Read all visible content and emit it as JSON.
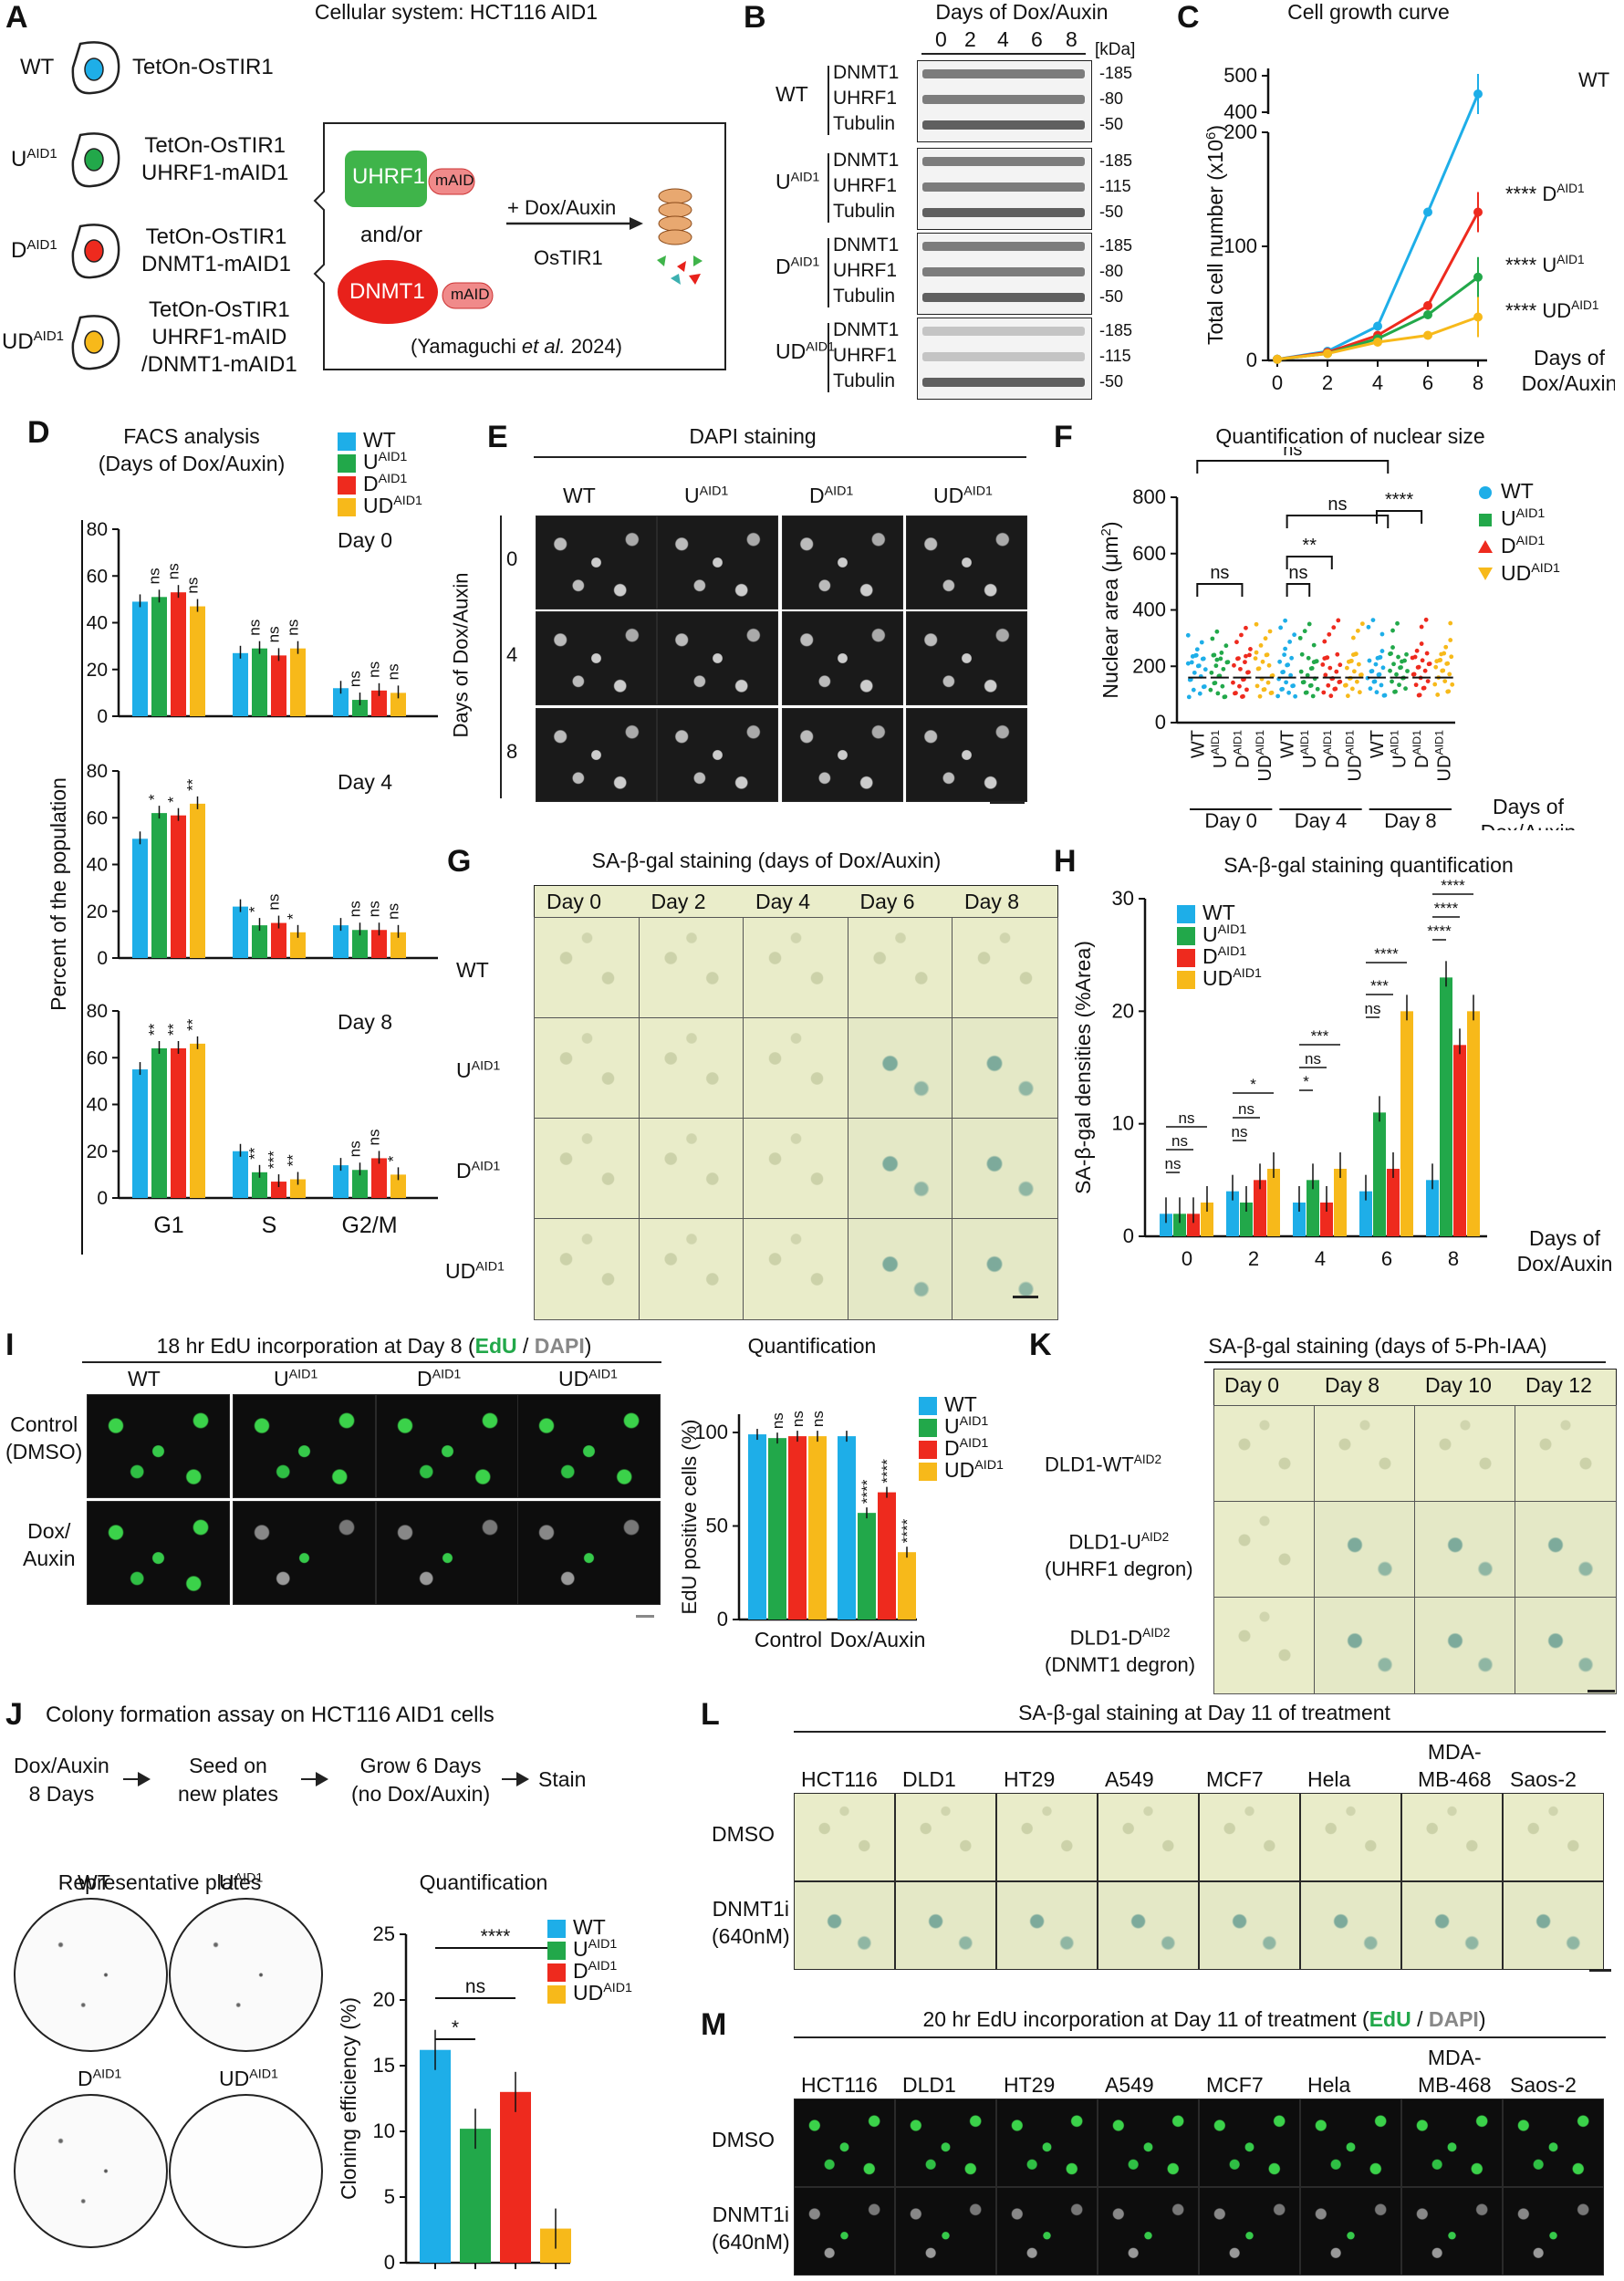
{
  "panel_labels": [
    "A",
    "B",
    "C",
    "D",
    "E",
    "F",
    "G",
    "H",
    "I",
    "J",
    "K",
    "L",
    "M"
  ],
  "panelA": {
    "title": "Cellular system: HCT116 AID1",
    "rows": [
      {
        "name": "WT",
        "sup": "",
        "lines": [
          "TetOn-OsTIR1"
        ]
      },
      {
        "name": "U",
        "sup": "AID1",
        "lines": [
          "TetOn-OsTIR1",
          "UHRF1-mAID1"
        ]
      },
      {
        "name": "D",
        "sup": "AID1",
        "lines": [
          "TetOn-OsTIR1",
          "DNMT1-mAID1"
        ]
      },
      {
        "name": "UD",
        "sup": "AID1",
        "lines": [
          "TetOn-OsTIR1",
          "UHRF1-mAID",
          "/DNMT1-mAID1"
        ]
      }
    ],
    "uhrf1": "UHRF1",
    "dnmt1": "DNMT1",
    "maid": "mAID",
    "andor": "and/or",
    "treatment": "+ Dox/Auxin",
    "ostir": "OsTIR1",
    "citation_pre": "(Yamaguchi ",
    "citation_em": "et al.",
    "citation_post": " 2024)"
  },
  "panelB": {
    "title": "Days of Dox/Auxin",
    "days": [
      "0",
      "2",
      "4",
      "6",
      "8"
    ],
    "kda": "[kDa]",
    "groups": [
      {
        "name": "WT",
        "sup": "",
        "proteins": [
          "DNMT1",
          "UHRF1",
          "Tubulin"
        ],
        "markers": [
          "185",
          "80",
          "50"
        ]
      },
      {
        "name": "U",
        "sup": "AID1",
        "proteins": [
          "DNMT1",
          "UHRF1",
          "Tubulin"
        ],
        "markers": [
          "185",
          "115",
          "50"
        ]
      },
      {
        "name": "D",
        "sup": "AID1",
        "proteins": [
          "DNMT1",
          "UHRF1",
          "Tubulin"
        ],
        "markers": [
          "185",
          "80",
          "50"
        ]
      },
      {
        "name": "UD",
        "sup": "AID1",
        "proteins": [
          "DNMT1",
          "UHRF1",
          "Tubulin"
        ],
        "markers": [
          "185",
          "115",
          "50"
        ]
      }
    ]
  },
  "panelC": {
    "title": "Cell growth curve",
    "ylabel": "Total cell number (x10",
    "ylabel_sup": "6",
    "ylabel_end": ")",
    "xlabel": "Days of",
    "xlabel2": "Dox/Auxin",
    "labels": [
      {
        "text": "WT",
        "sig": ""
      },
      {
        "text": "D",
        "sup": "AID1",
        "sig": "****"
      },
      {
        "text": "U",
        "sup": "AID1",
        "sig": "****"
      },
      {
        "text": "UD",
        "sup": "AID1",
        "sig": "****"
      }
    ]
  },
  "panelD": {
    "title": "FACS analysis",
    "subtitle": "(Days of Dox/Auxin)",
    "ylabel": "Percent of the population",
    "categories": [
      "G1",
      "S",
      "G2/M"
    ],
    "days": [
      "Day 0",
      "Day 4",
      "Day 8"
    ]
  },
  "panelE": {
    "title": "DAPI staining",
    "ylabel": "Days of Dox/Auxin",
    "cols": [
      {
        "n": "WT",
        "s": ""
      },
      {
        "n": "U",
        "s": "AID1"
      },
      {
        "n": "D",
        "s": "AID1"
      },
      {
        "n": "UD",
        "s": "AID1"
      }
    ],
    "rows": [
      "0",
      "4",
      "8"
    ]
  },
  "panelF": {
    "title": "Quantification of nuclear size",
    "ylabel": "Nuclear area (μm",
    "ylabel_sup": "2",
    "ylabel_end": ")",
    "xlabel": "Days of",
    "xlabel2": "Dox/Auxin",
    "day_labels": [
      "Day 0",
      "Day 4",
      "Day 8"
    ],
    "sig": [
      "ns",
      "ns",
      "ns",
      "**",
      "ns",
      "****"
    ]
  },
  "panelG": {
    "title": "SA-β-gal staining (days of Dox/Auxin)",
    "cols": [
      "Day 0",
      "Day 2",
      "Day 4",
      "Day 6",
      "Day 8"
    ],
    "rows": [
      {
        "n": "WT",
        "s": ""
      },
      {
        "n": "U",
        "s": "AID1"
      },
      {
        "n": "D",
        "s": "AID1"
      },
      {
        "n": "UD",
        "s": "AID1"
      }
    ]
  },
  "panelH": {
    "title": "SA-β-gal staining quantification",
    "ylabel": "SA-β-gal densities (%Area)",
    "xlabel": "Days of",
    "xlabel2": "Dox/Auxin"
  },
  "panelI": {
    "title_pre": "18 hr EdU incorporation at Day 8 (",
    "title_edu": "EdU",
    "title_sep": " / ",
    "title_dapi": "DAPI",
    "title_post": ")",
    "cols": [
      {
        "n": "WT",
        "s": ""
      },
      {
        "n": "U",
        "s": "AID1"
      },
      {
        "n": "D",
        "s": "AID1"
      },
      {
        "n": "UD",
        "s": "AID1"
      }
    ],
    "rows": [
      "Control",
      "(DMSO)",
      "Dox/",
      "Auxin"
    ],
    "quant_title": "Quantification",
    "ylabel": "EdU positive cells (%)",
    "groups": [
      "Control",
      "Dox/Auxin"
    ]
  },
  "panelJ": {
    "title": "Colony formation assay on HCT116 AID1 cells",
    "steps": [
      [
        "Dox/Auxin",
        "8 Days"
      ],
      [
        "Seed on",
        "new plates"
      ],
      [
        "Grow 6 Days",
        "(no Dox/Auxin)"
      ],
      [
        "Stain"
      ]
    ],
    "plates_title": "Representative plates",
    "plates": [
      {
        "n": "WT",
        "s": ""
      },
      {
        "n": "U",
        "s": "AID1"
      },
      {
        "n": "D",
        "s": "AID1"
      },
      {
        "n": "UD",
        "s": "AID1"
      }
    ],
    "quant_title": "Quantification",
    "ylabel": "Cloning efficiency (%)"
  },
  "panelK": {
    "title": "SA-β-gal staining (days of 5-Ph-IAA)",
    "cols": [
      "Day 0",
      "Day 8",
      "Day 10",
      "Day 12"
    ],
    "rows": [
      [
        "DLD1-WT",
        "AID2",
        ""
      ],
      [
        "DLD1-U",
        "AID2",
        "(UHRF1 degron)"
      ],
      [
        "DLD1-D",
        "AID2",
        "(DNMT1 degron)"
      ]
    ]
  },
  "panelL": {
    "title": "SA-β-gal staining at Day 11 of treatment",
    "cols": [
      "HCT116",
      "DLD1",
      "HT29",
      "A549",
      "MCF7",
      "Hela",
      "MDA-MB-468",
      "Saos-2"
    ],
    "rows": [
      [
        "DMSO",
        ""
      ],
      [
        "DNMT1i",
        "(640nM)"
      ]
    ]
  },
  "panelM": {
    "title_pre": "20 hr EdU incorporation at Day 11 of treatment (",
    "title_edu": "EdU",
    "title_sep": " / ",
    "title_dapi": "DAPI",
    "title_post": ")",
    "cols": [
      "HCT116",
      "DLD1",
      "HT29",
      "A549",
      "MCF7",
      "Hela",
      "MDA-MB-468",
      "Saos-2"
    ],
    "rows": [
      [
        "DMSO",
        ""
      ],
      [
        "DNMT1i",
        "(640nM)"
      ]
    ]
  },
  "legend": [
    {
      "n": "WT",
      "s": "",
      "color": "#1eaee8"
    },
    {
      "n": "U",
      "s": "AID1",
      "color": "#22a84a"
    },
    {
      "n": "D",
      "s": "AID1",
      "color": "#ee2a1e"
    },
    {
      "n": "UD",
      "s": "AID1",
      "color": "#f7b91a"
    }
  ],
  "chart_data": [
    {
      "id": "C",
      "type": "line",
      "title": "Cell growth curve",
      "x": [
        0,
        2,
        4,
        6,
        8
      ],
      "ylim": [
        0,
        500
      ],
      "yticks": [
        "0",
        "100",
        "200",
        "400",
        "500"
      ],
      "series": [
        {
          "name": "WT",
          "values": [
            1,
            8,
            30,
            130,
            450
          ]
        },
        {
          "name": "DAID1",
          "values": [
            1,
            7,
            22,
            48,
            130
          ]
        },
        {
          "name": "UAID1",
          "values": [
            1,
            6,
            19,
            40,
            73
          ]
        },
        {
          "name": "UDAID1",
          "values": [
            1,
            6,
            16,
            22,
            38
          ]
        }
      ]
    },
    {
      "id": "D",
      "type": "bar",
      "title": "FACS analysis",
      "categories": [
        "G1",
        "S",
        "G2/M"
      ],
      "ylim": [
        0,
        80
      ],
      "facets": [
        {
          "day": "Day 0",
          "series": [
            [
              49,
              27,
              12
            ],
            [
              51,
              29,
              7
            ],
            [
              53,
              26,
              11
            ],
            [
              47,
              29,
              10
            ]
          ],
          "sig": [
            [
              "",
              "ns",
              "ns",
              "ns"
            ],
            [
              "",
              "ns",
              "ns",
              "ns"
            ],
            [
              "",
              "ns",
              "ns",
              "ns"
            ]
          ]
        },
        {
          "day": "Day 4",
          "series": [
            [
              51,
              22,
              14
            ],
            [
              62,
              14,
              12
            ],
            [
              61,
              15,
              12
            ],
            [
              66,
              11,
              11
            ]
          ],
          "sig": [
            [
              "",
              "*",
              "*",
              "**"
            ],
            [
              "",
              "*",
              "ns",
              "*"
            ],
            [
              "",
              "ns",
              "ns",
              "ns"
            ]
          ]
        },
        {
          "day": "Day 8",
          "series": [
            [
              55,
              20,
              14
            ],
            [
              64,
              11,
              12
            ],
            [
              64,
              7,
              17
            ],
            [
              66,
              8,
              10
            ]
          ],
          "sig": [
            [
              "",
              "**",
              "**",
              "**"
            ],
            [
              "",
              "**",
              "***",
              "**"
            ],
            [
              "",
              "ns",
              "ns",
              "*"
            ]
          ]
        }
      ]
    },
    {
      "id": "H",
      "type": "bar",
      "title": "SA-β-gal staining quantification",
      "categories": [
        "0",
        "2",
        "4",
        "6",
        "8"
      ],
      "ylim": [
        0,
        30
      ],
      "yticks": [
        "0",
        "10",
        "20",
        "30"
      ],
      "series": [
        {
          "name": "WT",
          "values": [
            2,
            4,
            3,
            4,
            5
          ]
        },
        {
          "name": "UAID1",
          "values": [
            2,
            3,
            5,
            11,
            23
          ]
        },
        {
          "name": "DAID1",
          "values": [
            2,
            5,
            3,
            6,
            17
          ]
        },
        {
          "name": "UDAID1",
          "values": [
            3,
            6,
            6,
            20,
            20
          ]
        }
      ],
      "sig": [
        "ns",
        "ns",
        "ns",
        "ns",
        "ns",
        "*",
        "*",
        "ns",
        "***",
        "ns",
        "***",
        "****",
        "****",
        "****",
        "****"
      ]
    },
    {
      "id": "I",
      "type": "bar",
      "title": "Quantification",
      "categories": [
        "Control",
        "Dox/Auxin"
      ],
      "ylim": [
        0,
        100
      ],
      "yticks": [
        "0",
        "50",
        "100"
      ],
      "series": [
        {
          "name": "WT",
          "values": [
            99,
            98
          ]
        },
        {
          "name": "UAID1",
          "values": [
            97,
            57
          ]
        },
        {
          "name": "DAID1",
          "values": [
            98,
            68
          ]
        },
        {
          "name": "UDAID1",
          "values": [
            98,
            36
          ]
        }
      ],
      "sig": [
        "ns",
        "ns",
        "ns",
        "****",
        "****",
        "****"
      ]
    },
    {
      "id": "J",
      "type": "bar",
      "title": "Quantification",
      "categories": [
        "WT",
        "UAID1",
        "DAID1",
        "UDAID1"
      ],
      "ylim": [
        0,
        25
      ],
      "yticks": [
        "0",
        "5",
        "10",
        "15",
        "20",
        "25"
      ],
      "values": [
        16.2,
        10.2,
        13.0,
        2.6
      ],
      "sig": [
        "*",
        "ns",
        "****"
      ]
    }
  ]
}
